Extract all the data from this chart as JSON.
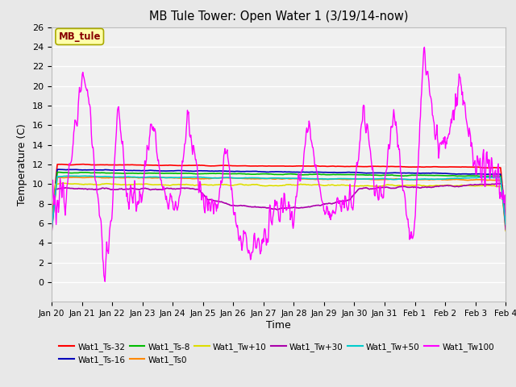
{
  "title": "MB Tule Tower: Open Water 1 (3/19/14-now)",
  "xlabel": "Time",
  "ylabel": "Temperature (C)",
  "ylim": [
    -2,
    26
  ],
  "yticks": [
    0,
    2,
    4,
    6,
    8,
    10,
    12,
    14,
    16,
    18,
    20,
    22,
    24,
    26
  ],
  "xlim": [
    0,
    15
  ],
  "xtick_labels": [
    "Jan 20",
    "Jan 21",
    "Jan 22",
    "Jan 23",
    "Jan 24",
    "Jan 25",
    "Jan 26",
    "Jan 27",
    "Jan 28",
    "Jan 29",
    "Jan 30",
    "Jan 31",
    "Feb 1",
    "Feb 2",
    "Feb 3",
    "Feb 4"
  ],
  "legend_label": "MB_tule",
  "series": [
    {
      "name": "Wat1_Ts-32",
      "color": "#ff0000"
    },
    {
      "name": "Wat1_Ts-16",
      "color": "#0000bb"
    },
    {
      "name": "Wat1_Ts-8",
      "color": "#00bb00"
    },
    {
      "name": "Wat1_Ts0",
      "color": "#ff8800"
    },
    {
      "name": "Wat1_Tw+10",
      "color": "#dddd00"
    },
    {
      "name": "Wat1_Tw+30",
      "color": "#aa00aa"
    },
    {
      "name": "Wat1_Tw+50",
      "color": "#00cccc"
    },
    {
      "name": "Wat1_Tw100",
      "color": "#ff00ff"
    }
  ],
  "bg_color": "#e8e8e8",
  "plot_bg": "#f0f0f0"
}
